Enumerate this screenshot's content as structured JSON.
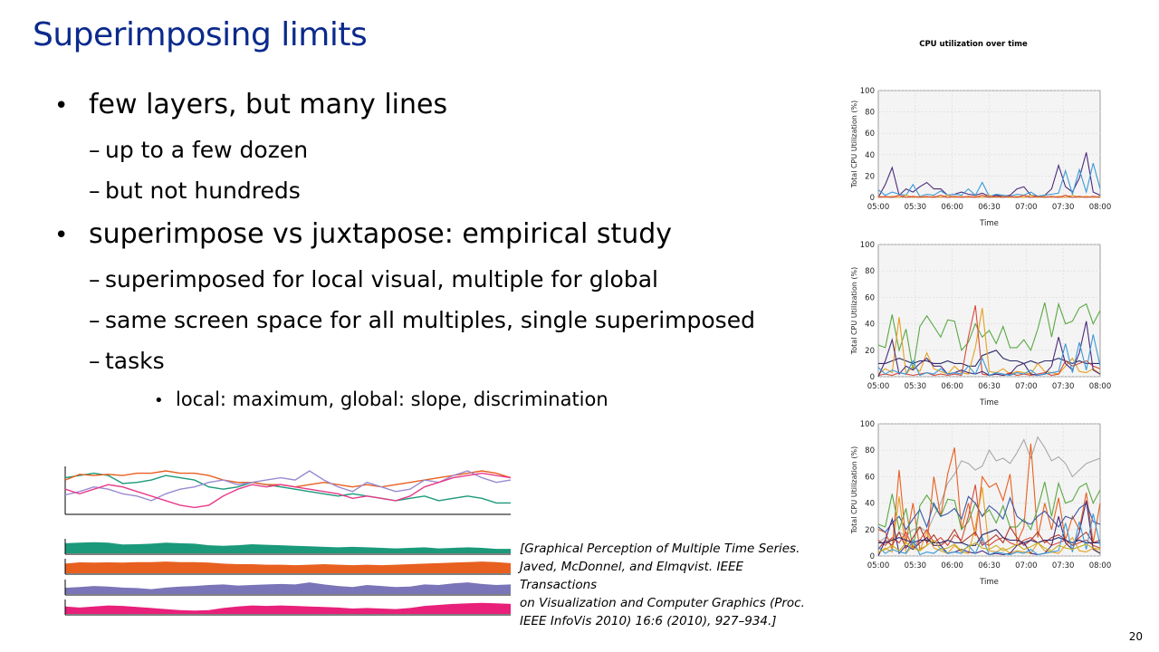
{
  "slide": {
    "title": "Superimposing limits",
    "page_number": "20"
  },
  "bullets": {
    "b1": "few layers, but many lines",
    "b1_1": "up to a few dozen",
    "b1_2": "but not hundreds",
    "b2": "superimpose vs juxtapose: empirical study",
    "b2_1": "superimposed for local visual, multiple for global",
    "b2_2": "same screen space for all multiples, single superimposed",
    "b2_3": "tasks",
    "b2_3_1": "local: maximum, global: slope, discrimination"
  },
  "citation": {
    "line1": "[Graphical Perception of Multiple Time Series.",
    "line2": "Javed, McDonnel, and Elmqvist. IEEE Transactions",
    "line3": "on Visualization and Computer Graphics (Proc.",
    "line4": "IEEE InfoVis 2010) 16:6 (2010), 927–934.]"
  },
  "chart_data": [
    {
      "type": "line",
      "title": "CPU utilization over time",
      "xlabel": "Time",
      "ylabel": "Total CPU Utilization (%)",
      "ylim": [
        0,
        100
      ],
      "y_ticks": [
        "0",
        "20",
        "40",
        "60",
        "80",
        "100"
      ],
      "x_ticks": [
        "05:00",
        "05:30",
        "06:00",
        "06:30",
        "07:00",
        "07:30",
        "08:00"
      ],
      "grid": true,
      "series": [
        {
          "color": "#4a2a7a",
          "values": [
            0,
            12,
            28,
            2,
            8,
            5,
            10,
            14,
            8,
            8,
            2,
            3,
            5,
            3,
            2,
            4,
            1,
            2,
            1,
            2,
            8,
            10,
            2,
            1,
            2,
            8,
            30,
            10,
            5,
            18,
            42,
            5,
            2
          ]
        },
        {
          "color": "#3a9ad9",
          "values": [
            7,
            2,
            5,
            3,
            2,
            12,
            1,
            3,
            2,
            6,
            2,
            3,
            2,
            8,
            2,
            14,
            1,
            3,
            2,
            1,
            3,
            2,
            5,
            1,
            2,
            3,
            4,
            25,
            3,
            26,
            5,
            32,
            8
          ]
        },
        {
          "color": "#e8a020",
          "values": [
            1,
            0,
            1,
            0,
            2,
            0,
            1,
            0,
            1,
            0,
            2,
            0,
            1,
            0,
            1,
            0,
            2,
            0,
            1,
            0,
            1,
            0,
            2,
            0,
            1,
            0,
            1,
            0,
            2,
            0,
            1,
            0,
            1
          ]
        },
        {
          "color": "#d84a3a",
          "values": [
            0,
            1,
            0,
            2,
            0,
            1,
            0,
            1,
            0,
            2,
            0,
            1,
            0,
            1,
            0,
            2,
            0,
            1,
            0,
            1,
            0,
            2,
            0,
            1,
            0,
            1,
            0,
            2,
            0,
            1,
            0,
            1,
            0
          ]
        }
      ]
    },
    {
      "type": "line",
      "xlabel": "Time",
      "ylabel": "Total CPU Utilization (%)",
      "ylim": [
        0,
        100
      ],
      "y_ticks": [
        "0",
        "20",
        "40",
        "60",
        "80",
        "100"
      ],
      "x_ticks": [
        "05:00",
        "05:30",
        "06:00",
        "06:30",
        "07:00",
        "07:30",
        "08:00"
      ],
      "grid": true,
      "series": [
        {
          "color": "#5aa845",
          "values": [
            24,
            22,
            47,
            20,
            36,
            5,
            38,
            46,
            38,
            30,
            43,
            42,
            20,
            26,
            40,
            30,
            35,
            25,
            38,
            22,
            22,
            28,
            20,
            36,
            56,
            30,
            55,
            40,
            42,
            52,
            55,
            40,
            50
          ]
        },
        {
          "color": "#2a2a6a",
          "values": [
            10,
            10,
            12,
            14,
            12,
            10,
            12,
            12,
            10,
            10,
            12,
            10,
            10,
            8,
            8,
            16,
            18,
            20,
            14,
            12,
            12,
            10,
            12,
            10,
            12,
            12,
            14,
            12,
            10,
            12,
            10,
            10,
            10
          ]
        },
        {
          "color": "#e8a020",
          "values": [
            2,
            6,
            3,
            45,
            2,
            8,
            4,
            18,
            6,
            4,
            2,
            8,
            3,
            2,
            22,
            52,
            4,
            3,
            6,
            2,
            4,
            3,
            2,
            10,
            4,
            3,
            2,
            8,
            14,
            4,
            3,
            6,
            2
          ]
        },
        {
          "color": "#d84a3a",
          "values": [
            1,
            2,
            1,
            3,
            2,
            1,
            2,
            3,
            1,
            2,
            1,
            2,
            1,
            30,
            54,
            2,
            1,
            2,
            1,
            3,
            1,
            2,
            1,
            2,
            3,
            1,
            2,
            12,
            8,
            10,
            12,
            8,
            6
          ]
        },
        {
          "color": "#4a2a7a",
          "values": [
            0,
            12,
            28,
            2,
            8,
            5,
            10,
            14,
            8,
            8,
            2,
            3,
            5,
            3,
            2,
            4,
            1,
            2,
            1,
            2,
            8,
            10,
            2,
            1,
            2,
            8,
            30,
            10,
            5,
            18,
            42,
            5,
            2
          ]
        },
        {
          "color": "#3a9ad9",
          "values": [
            7,
            2,
            5,
            3,
            2,
            12,
            1,
            3,
            2,
            6,
            2,
            3,
            2,
            8,
            2,
            14,
            1,
            3,
            2,
            1,
            3,
            2,
            5,
            1,
            2,
            3,
            4,
            25,
            3,
            26,
            5,
            32,
            8
          ]
        }
      ]
    },
    {
      "type": "line",
      "xlabel": "Time",
      "ylabel": "Total CPU Utilization (%)",
      "ylim": [
        0,
        100
      ],
      "y_ticks": [
        "0",
        "20",
        "40",
        "60",
        "80",
        "100"
      ],
      "x_ticks": [
        "05:00",
        "05:30",
        "06:00",
        "06:30",
        "07:00",
        "07:30",
        "08:00"
      ],
      "grid": true,
      "series": [
        {
          "color": "#a8a8a8",
          "values": [
            10,
            14,
            12,
            18,
            15,
            20,
            22,
            18,
            30,
            40,
            55,
            62,
            72,
            70,
            65,
            68,
            80,
            72,
            74,
            70,
            78,
            88,
            74,
            90,
            82,
            72,
            75,
            70,
            60,
            65,
            70,
            72,
            74
          ]
        },
        {
          "color": "#e86020",
          "values": [
            20,
            18,
            5,
            65,
            10,
            40,
            5,
            8,
            60,
            30,
            62,
            82,
            20,
            40,
            15,
            60,
            52,
            55,
            42,
            62,
            10,
            22,
            85,
            14,
            40,
            20,
            44,
            12,
            30,
            20,
            48,
            10,
            40
          ]
        },
        {
          "color": "#5aa845",
          "values": [
            24,
            22,
            47,
            20,
            36,
            5,
            38,
            46,
            38,
            30,
            43,
            42,
            20,
            26,
            40,
            30,
            35,
            25,
            38,
            22,
            22,
            28,
            20,
            36,
            56,
            30,
            55,
            40,
            42,
            52,
            55,
            40,
            50
          ]
        },
        {
          "color": "#3a5aa8",
          "values": [
            22,
            18,
            25,
            30,
            20,
            28,
            35,
            22,
            40,
            30,
            32,
            36,
            28,
            45,
            40,
            30,
            38,
            34,
            28,
            44,
            30,
            26,
            24,
            30,
            34,
            28,
            22,
            30,
            28,
            36,
            40,
            26,
            24
          ]
        },
        {
          "color": "#e8a020",
          "values": [
            2,
            6,
            3,
            45,
            2,
            8,
            4,
            18,
            6,
            4,
            2,
            8,
            3,
            2,
            22,
            52,
            4,
            3,
            6,
            2,
            4,
            3,
            2,
            10,
            4,
            3,
            2,
            8,
            14,
            4,
            3,
            6,
            2
          ]
        },
        {
          "color": "#d84a3a",
          "values": [
            12,
            8,
            14,
            10,
            18,
            6,
            12,
            20,
            10,
            14,
            8,
            16,
            12,
            30,
            54,
            10,
            8,
            12,
            14,
            10,
            8,
            12,
            14,
            10,
            12,
            8,
            10,
            12,
            8,
            10,
            12,
            8,
            6
          ]
        },
        {
          "color": "#b03a2a",
          "values": [
            5,
            12,
            8,
            18,
            6,
            14,
            22,
            10,
            16,
            8,
            12,
            20,
            10,
            14,
            18,
            8,
            12,
            16,
            10,
            22,
            14,
            8,
            12,
            18,
            10,
            14,
            16,
            12,
            8,
            14,
            18,
            10,
            12
          ]
        },
        {
          "color": "#2a2a6a",
          "values": [
            10,
            10,
            12,
            14,
            12,
            10,
            12,
            12,
            10,
            10,
            12,
            10,
            10,
            8,
            8,
            16,
            18,
            20,
            14,
            12,
            12,
            10,
            12,
            10,
            12,
            12,
            14,
            12,
            10,
            12,
            10,
            10,
            10
          ]
        },
        {
          "color": "#4a2a7a",
          "values": [
            0,
            12,
            28,
            2,
            8,
            5,
            10,
            14,
            8,
            8,
            2,
            3,
            5,
            3,
            2,
            4,
            1,
            2,
            1,
            2,
            8,
            10,
            2,
            1,
            2,
            8,
            30,
            10,
            5,
            18,
            42,
            5,
            2
          ]
        },
        {
          "color": "#3a9ad9",
          "values": [
            7,
            2,
            5,
            3,
            2,
            12,
            1,
            3,
            2,
            6,
            2,
            3,
            2,
            8,
            2,
            14,
            1,
            3,
            2,
            1,
            3,
            2,
            5,
            1,
            2,
            3,
            4,
            25,
            3,
            26,
            5,
            32,
            8
          ]
        },
        {
          "color": "#c8b020",
          "values": [
            3,
            5,
            8,
            4,
            10,
            6,
            4,
            8,
            12,
            5,
            6,
            9,
            4,
            7,
            10,
            6,
            5,
            8,
            4,
            6,
            9,
            5,
            7,
            10,
            6,
            4,
            8,
            6,
            5,
            7,
            9,
            6,
            5
          ]
        }
      ]
    },
    {
      "type": "line",
      "grid": false,
      "series": [
        {
          "color": "#1a9a7a",
          "values": [
            60,
            62,
            64,
            62,
            55,
            56,
            58,
            62,
            60,
            58,
            52,
            50,
            52,
            56,
            54,
            52,
            50,
            48,
            46,
            44,
            46,
            44,
            42,
            40,
            42,
            44,
            40,
            42,
            44,
            42,
            38,
            38
          ]
        },
        {
          "color": "#e86020",
          "values": [
            58,
            63,
            62,
            63,
            62,
            64,
            64,
            66,
            64,
            64,
            62,
            58,
            56,
            56,
            54,
            54,
            52,
            54,
            56,
            54,
            52,
            54,
            52,
            54,
            56,
            58,
            60,
            62,
            64,
            66,
            64,
            60
          ]
        },
        {
          "color": "#9a8ad0",
          "values": [
            45,
            48,
            52,
            50,
            46,
            44,
            40,
            46,
            50,
            52,
            56,
            58,
            54,
            56,
            58,
            60,
            58,
            66,
            58,
            52,
            48,
            56,
            52,
            48,
            50,
            58,
            56,
            62,
            66,
            60,
            56,
            58
          ]
        },
        {
          "color": "#e83a8a",
          "values": [
            50,
            46,
            50,
            54,
            52,
            48,
            44,
            40,
            36,
            34,
            36,
            44,
            50,
            54,
            52,
            54,
            52,
            50,
            48,
            46,
            42,
            44,
            42,
            40,
            44,
            52,
            56,
            60,
            62,
            64,
            62,
            60
          ]
        }
      ]
    },
    {
      "type": "area",
      "grid": false,
      "series": [
        {
          "color": "#1a9a7a",
          "values": [
            60,
            62,
            64,
            62,
            55,
            56,
            58,
            62,
            60,
            58,
            52,
            50,
            52,
            56,
            54,
            52,
            50,
            48,
            46,
            44,
            46,
            44,
            42,
            40,
            42,
            44,
            40,
            42,
            44,
            42,
            38,
            38
          ]
        },
        {
          "color": "#e86020",
          "values": [
            58,
            63,
            62,
            63,
            62,
            64,
            64,
            66,
            64,
            64,
            62,
            58,
            56,
            56,
            54,
            54,
            52,
            54,
            56,
            54,
            52,
            54,
            52,
            54,
            56,
            58,
            60,
            62,
            64,
            66,
            64,
            60
          ]
        },
        {
          "color": "#7a74b8",
          "values": [
            45,
            48,
            52,
            50,
            46,
            44,
            40,
            46,
            50,
            52,
            56,
            58,
            54,
            56,
            58,
            60,
            58,
            66,
            58,
            52,
            48,
            56,
            52,
            48,
            50,
            58,
            56,
            62,
            66,
            60,
            56,
            58
          ]
        },
        {
          "color": "#e8207a",
          "values": [
            50,
            46,
            50,
            54,
            52,
            48,
            44,
            40,
            36,
            34,
            36,
            44,
            50,
            54,
            52,
            54,
            52,
            50,
            48,
            46,
            42,
            44,
            42,
            40,
            44,
            52,
            56,
            60,
            62,
            64,
            62,
            60
          ]
        }
      ]
    }
  ]
}
